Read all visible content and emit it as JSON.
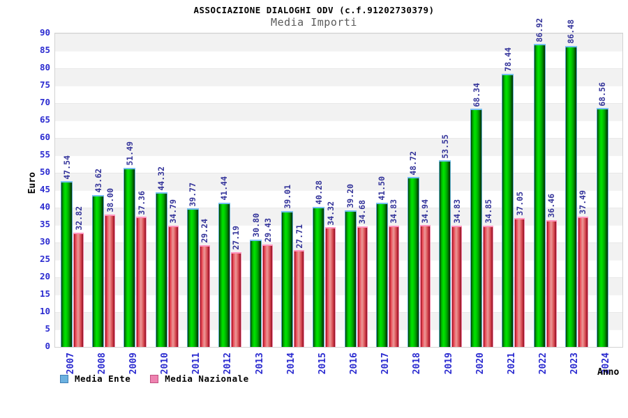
{
  "header": {
    "title": "ASSOCIAZIONE DIALOGHI ODV (c.f.91202730379)",
    "subtitle": "Media Importi"
  },
  "chart_data": {
    "type": "bar",
    "title": "ASSOCIAZIONE DIALOGHI ODV (c.f.91202730379)",
    "subtitle": "Media Importi",
    "xlabel": "Anno",
    "ylabel": "Euro",
    "ylim": [
      0,
      90
    ],
    "ytick_step": 5,
    "grid": "horizontal-bands-alternating",
    "legend_position": "bottom-left",
    "categories": [
      "2007",
      "2008",
      "2009",
      "2010",
      "2011",
      "2012",
      "2013",
      "2014",
      "2015",
      "2016",
      "2017",
      "2018",
      "2019",
      "2020",
      "2021",
      "2022",
      "2023",
      "2024"
    ],
    "series": [
      {
        "name": "Media Ente",
        "values": [
          47.54,
          43.62,
          51.49,
          44.32,
          39.77,
          41.44,
          30.8,
          39.01,
          40.28,
          39.2,
          41.5,
          48.72,
          53.55,
          68.34,
          78.44,
          86.92,
          86.48,
          68.56
        ]
      },
      {
        "name": "Media Nazionale",
        "values": [
          32.82,
          38.0,
          37.36,
          34.79,
          29.24,
          27.19,
          29.43,
          27.71,
          34.32,
          34.68,
          34.83,
          34.94,
          34.83,
          34.85,
          37.05,
          36.46,
          37.49,
          null
        ]
      }
    ]
  },
  "colors": {
    "axis_tick_text": "#2b2bd0",
    "value_label_text": "#34349a",
    "title_text": "#000000",
    "subtitle_text": "#5a5a5a",
    "band_gray": "#f2f2f2",
    "plot_border": "#d2d2d2",
    "bar_ente_bright": "#00e300",
    "bar_ente_cap": "#74bfef",
    "bar_naz_bright": "#ea4350",
    "bar_naz_cap": "#ff93bd",
    "legend_ente_fill": "#6bb1e0",
    "legend_naz_fill": "#ee82b0"
  }
}
